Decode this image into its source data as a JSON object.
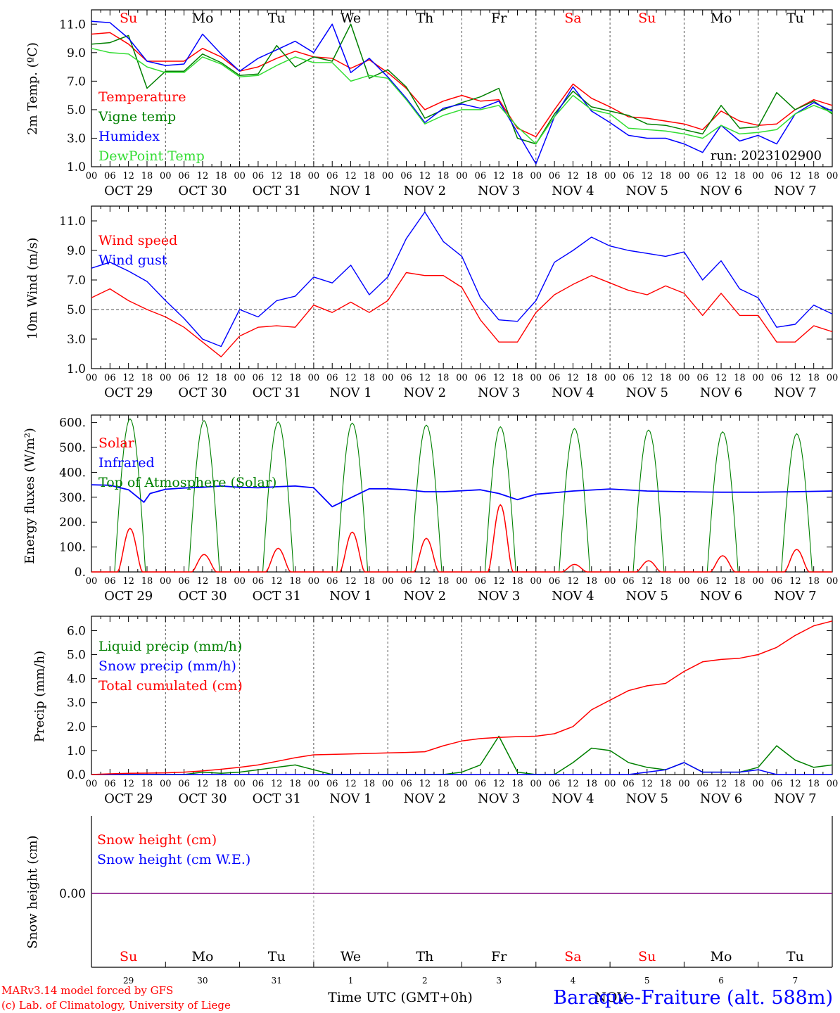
{
  "colors": {
    "red": "#ff0000",
    "green": "#008000",
    "blue": "#0000ff",
    "lightgreen": "#33dd33",
    "purple": "#800080",
    "axis": "#000000",
    "dash": "#555555"
  },
  "days": [
    "Su",
    "Mo",
    "Tu",
    "We",
    "Th",
    "Fr",
    "Sa",
    "Su",
    "Mo",
    "Tu"
  ],
  "day_colors": [
    "red",
    "black",
    "black",
    "black",
    "black",
    "black",
    "red",
    "red",
    "black",
    "black"
  ],
  "hour_ticks": [
    "00",
    "06",
    "12",
    "18"
  ],
  "end_tick": "00",
  "date_labels": [
    "OCT 29",
    "OCT 30",
    "OCT 31",
    "NOV  1",
    "NOV  2",
    "NOV  3",
    "NOV  4",
    "NOV  5",
    "NOV  6",
    "NOV  7"
  ],
  "bottom_day_numbers": [
    "29",
    "30",
    "31",
    "1",
    "2",
    "3",
    "4",
    "5",
    "6",
    "7"
  ],
  "bottom_month": "NOV",
  "x_axis_label": "Time UTC (GMT+0h)",
  "station": "Baraque-Fraiture (alt. 588m)",
  "credit_line1": "MARv3.14 model forced by GFS",
  "credit_line2": "(c) Lab. of Climatology, University of Liege",
  "run_label": "run: 2023102900",
  "chart_data": [
    {
      "type": "line",
      "ylabel": "2m Temp. (ºC)",
      "ylim": [
        1,
        12
      ],
      "yticks": [
        "1.0",
        "3.0",
        "5.0",
        "7.0",
        "9.0",
        "11.0"
      ],
      "x_unit": "hours since OCT 29 00 UTC",
      "x": [
        0,
        6,
        12,
        18,
        24,
        30,
        36,
        42,
        48,
        54,
        60,
        66,
        72,
        78,
        84,
        90,
        96,
        102,
        108,
        114,
        120,
        126,
        132,
        138,
        144,
        150,
        156,
        162,
        168,
        174,
        180,
        186,
        192,
        198,
        204,
        210,
        216,
        222,
        228,
        234,
        240
      ],
      "series": [
        {
          "name": "Temperature",
          "color": "red",
          "values": [
            10.3,
            10.4,
            9.6,
            8.4,
            8.4,
            8.4,
            9.3,
            8.7,
            7.7,
            8.0,
            8.6,
            9.1,
            8.7,
            8.6,
            7.9,
            8.5,
            7.6,
            6.5,
            5.0,
            5.6,
            6.0,
            5.6,
            5.7,
            3.7,
            3.1,
            5.0,
            6.8,
            5.8,
            5.2,
            4.5,
            4.4,
            4.2,
            4.0,
            3.6,
            4.9,
            4.2,
            3.9,
            4.0,
            5.0,
            5.7,
            5.3
          ]
        },
        {
          "name": "Vigne temp",
          "color": "green",
          "values": [
            9.6,
            9.7,
            10.2,
            6.5,
            7.7,
            7.7,
            8.9,
            8.3,
            7.4,
            7.5,
            9.5,
            8.0,
            8.7,
            8.4,
            11.0,
            7.2,
            7.8,
            6.6,
            4.4,
            5.0,
            5.5,
            5.9,
            6.5,
            3.0,
            2.6,
            4.7,
            6.3,
            5.2,
            4.9,
            4.6,
            4.0,
            3.9,
            3.6,
            3.3,
            5.3,
            3.7,
            3.8,
            6.2,
            5.0,
            5.6,
            4.7
          ]
        },
        {
          "name": "Humidex",
          "color": "blue",
          "values": [
            11.2,
            11.1,
            10.0,
            8.4,
            8.1,
            8.2,
            10.3,
            8.9,
            7.7,
            8.6,
            9.2,
            9.8,
            9.0,
            11.0,
            7.6,
            8.6,
            7.3,
            5.8,
            4.1,
            5.1,
            5.4,
            5.1,
            5.6,
            3.4,
            1.2,
            4.5,
            6.6,
            4.9,
            4.1,
            3.2,
            3.0,
            3.0,
            2.6,
            2.0,
            3.9,
            2.8,
            3.2,
            2.6,
            4.7,
            5.5,
            4.9
          ]
        },
        {
          "name": "DewPoint Temp",
          "color": "lightgreen",
          "values": [
            9.3,
            9.0,
            8.9,
            8.0,
            7.6,
            7.6,
            8.7,
            8.2,
            7.3,
            7.4,
            8.1,
            8.7,
            8.3,
            8.3,
            7.0,
            7.4,
            7.2,
            5.7,
            4.0,
            4.6,
            5.0,
            5.0,
            5.3,
            3.8,
            2.6,
            4.5,
            6.0,
            5.0,
            4.7,
            3.7,
            3.6,
            3.5,
            3.3,
            3.0,
            3.9,
            3.3,
            3.4,
            3.6,
            4.7,
            5.3,
            4.8
          ]
        }
      ]
    },
    {
      "type": "line",
      "ylabel": "10m Wind (m/s)",
      "ylim": [
        1,
        12
      ],
      "yticks": [
        "1.0",
        "3.0",
        "5.0",
        "7.0",
        "9.0",
        "11.0"
      ],
      "reference_line": 5,
      "x_unit": "hours since OCT 29 00 UTC",
      "x": [
        0,
        6,
        12,
        18,
        24,
        30,
        36,
        42,
        48,
        54,
        60,
        66,
        72,
        78,
        84,
        90,
        96,
        102,
        108,
        114,
        120,
        126,
        132,
        138,
        144,
        150,
        156,
        162,
        168,
        174,
        180,
        186,
        192,
        198,
        204,
        210,
        216,
        222,
        228,
        234,
        240
      ],
      "series": [
        {
          "name": "Wind speed",
          "color": "red",
          "values": [
            5.8,
            6.4,
            5.6,
            5.0,
            4.5,
            3.8,
            2.8,
            1.8,
            3.2,
            3.8,
            3.9,
            3.8,
            5.3,
            4.8,
            5.5,
            4.8,
            5.6,
            7.5,
            7.3,
            7.3,
            6.5,
            4.3,
            2.8,
            2.8,
            4.8,
            6.0,
            6.7,
            7.3,
            6.8,
            6.3,
            6.0,
            6.6,
            6.1,
            4.6,
            6.1,
            4.6,
            4.6,
            2.8,
            2.8,
            3.9,
            3.5
          ]
        },
        {
          "name": "Wind gust",
          "color": "blue",
          "values": [
            7.8,
            8.2,
            7.6,
            6.9,
            5.6,
            4.4,
            3.0,
            2.5,
            5.0,
            4.5,
            5.6,
            5.9,
            7.2,
            6.8,
            8.0,
            6.0,
            7.2,
            9.8,
            11.6,
            9.6,
            8.6,
            5.8,
            4.3,
            4.2,
            5.6,
            8.2,
            9.0,
            9.9,
            9.3,
            9.0,
            8.8,
            8.6,
            8.9,
            7.0,
            8.3,
            6.4,
            5.8,
            3.8,
            4.0,
            5.3,
            4.7
          ]
        }
      ]
    },
    {
      "type": "line",
      "ylabel": "Energy fluxes (W/m²)",
      "ylim": [
        0,
        630
      ],
      "yticks": [
        "0.",
        "100.",
        "200.",
        "300.",
        "400.",
        "500.",
        "600."
      ],
      "x_unit": "hours since OCT 29 00 UTC",
      "daylight_hours": [
        7.5,
        17.5
      ],
      "toa_peaks": [
        615,
        608,
        603,
        598,
        590,
        583,
        576,
        570,
        563,
        555
      ],
      "solar_peaks": [
        175,
        70,
        95,
        160,
        135,
        270,
        30,
        45,
        65,
        90
      ],
      "infrared": {
        "x": [
          0,
          6,
          12,
          17,
          19,
          24,
          30,
          36,
          42,
          48,
          54,
          60,
          66,
          72,
          78,
          90,
          96,
          102,
          108,
          114,
          120,
          126,
          132,
          138,
          144,
          150,
          156,
          168,
          180,
          192,
          204,
          216,
          228,
          240
        ],
        "values": [
          350,
          348,
          330,
          280,
          315,
          332,
          337,
          340,
          345,
          340,
          338,
          342,
          345,
          338,
          262,
          334,
          334,
          330,
          322,
          322,
          326,
          330,
          315,
          290,
          312,
          318,
          325,
          333,
          325,
          322,
          320,
          320,
          322,
          325
        ]
      },
      "series": [
        {
          "name": "Solar",
          "color": "red"
        },
        {
          "name": "Infrared",
          "color": "blue"
        },
        {
          "name": "Top of Atmosphere (Solar)",
          "color": "green"
        }
      ]
    },
    {
      "type": "line",
      "ylabel": "Precip (mm/h)",
      "ylim": [
        0,
        6.6
      ],
      "yticks": [
        "0.0",
        "1.0",
        "2.0",
        "3.0",
        "4.0",
        "5.0",
        "6.0"
      ],
      "x_unit": "hours since OCT 29 00 UTC",
      "x": [
        0,
        6,
        12,
        18,
        24,
        30,
        36,
        42,
        48,
        54,
        60,
        66,
        72,
        78,
        84,
        90,
        96,
        102,
        108,
        114,
        120,
        126,
        132,
        138,
        144,
        150,
        156,
        162,
        168,
        174,
        180,
        186,
        192,
        198,
        204,
        210,
        216,
        222,
        228,
        234,
        240
      ],
      "series": [
        {
          "name": "Liquid precip (mm/h)",
          "color": "green",
          "values": [
            0,
            0,
            0,
            0,
            0,
            0,
            0.1,
            0.05,
            0.1,
            0.2,
            0.3,
            0.4,
            0.2,
            0,
            0,
            0,
            0,
            0,
            0,
            0,
            0.1,
            0.4,
            1.6,
            0.1,
            0,
            0,
            0.5,
            1.1,
            1.0,
            0.5,
            0.3,
            0.2,
            0.5,
            0.1,
            0.1,
            0.1,
            0.3,
            1.2,
            0.6,
            0.3,
            0.4
          ]
        },
        {
          "name": "Snow precip (mm/h)",
          "color": "blue",
          "values": [
            0,
            0,
            0,
            0,
            0,
            0,
            0,
            0,
            0,
            0,
            0,
            0,
            0,
            0,
            0,
            0,
            0,
            0,
            0,
            0,
            0,
            0,
            0,
            0,
            0,
            0,
            0,
            0,
            0,
            0,
            0.1,
            0.2,
            0.5,
            0.1,
            0.1,
            0.1,
            0.2,
            0,
            0,
            0,
            0
          ]
        },
        {
          "name": "Total cumulated (cm)",
          "color": "red",
          "values": [
            0,
            0.03,
            0.05,
            0.06,
            0.07,
            0.1,
            0.15,
            0.22,
            0.3,
            0.4,
            0.55,
            0.7,
            0.82,
            0.84,
            0.86,
            0.88,
            0.9,
            0.92,
            0.95,
            1.2,
            1.4,
            1.5,
            1.55,
            1.58,
            1.6,
            1.7,
            2.0,
            2.7,
            3.1,
            3.5,
            3.7,
            3.8,
            4.3,
            4.7,
            4.8,
            4.85,
            5.0,
            5.3,
            5.8,
            6.2,
            6.4
          ]
        }
      ]
    },
    {
      "type": "line",
      "ylabel": "Snow height (cm)",
      "yticks": [
        "0.00"
      ],
      "series": [
        {
          "name": "Snow height (cm)",
          "color": "red",
          "values": [
            0
          ]
        },
        {
          "name": "Snow height (cm W.E.)",
          "color": "blue",
          "values": [
            0
          ]
        }
      ]
    }
  ]
}
